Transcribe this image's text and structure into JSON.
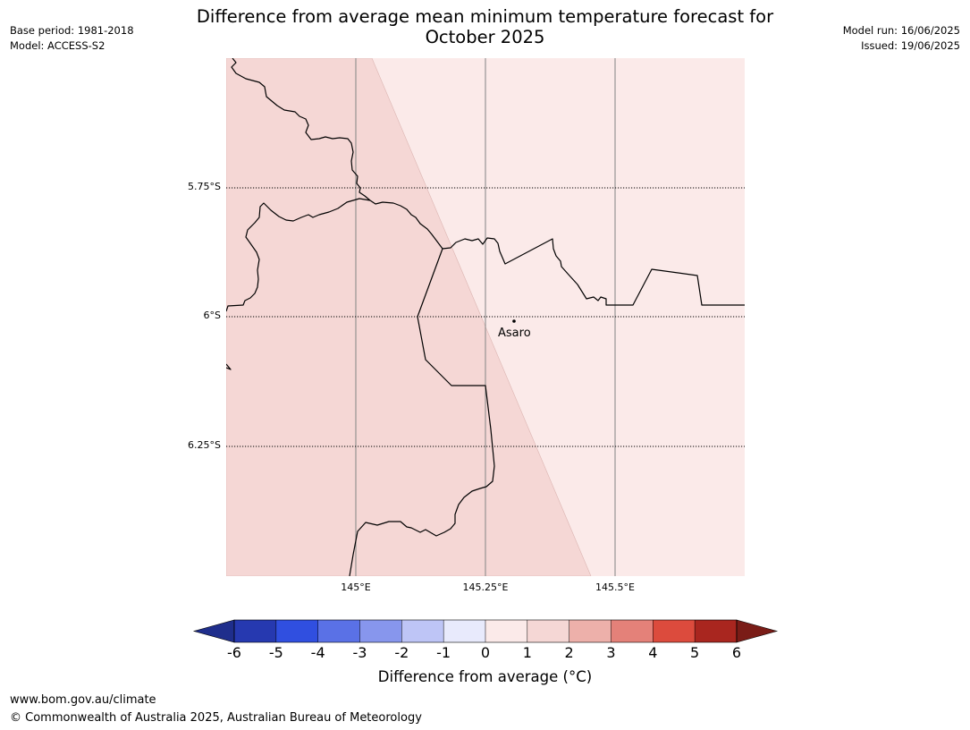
{
  "header": {
    "title_line1": "Difference from average mean minimum temperature forecast for",
    "title_line2": "October 2025",
    "base_period": "Base period: 1981-2018",
    "model": "Model: ACCESS-S2",
    "model_run": "Model run: 16/06/2025",
    "issued": "Issued: 19/06/2025"
  },
  "map": {
    "lat_labels": [
      "5.75°S",
      "6°S",
      "6.25°S"
    ],
    "lon_labels": [
      "145°E",
      "145.25°E",
      "145.5°E"
    ],
    "place": {
      "name": "Asaro"
    },
    "fill_colors": {
      "band_1_to_2": "#f5d7d5",
      "band_0_to_1": "#fbeae9"
    }
  },
  "colorbar": {
    "ticks": [
      "-6",
      "-5",
      "-4",
      "-3",
      "-2",
      "-1",
      "0",
      "1",
      "2",
      "3",
      "4",
      "5",
      "6"
    ],
    "colors": [
      "#1f2e8c",
      "#2639b0",
      "#304fe0",
      "#5a71e6",
      "#8796ed",
      "#bec5f6",
      "#e8eafc",
      "#fbeae9",
      "#f5d7d5",
      "#edb0aa",
      "#e48179",
      "#dc4b3d",
      "#a9261f",
      "#7a1c17"
    ],
    "label": "Difference from average (°C)"
  },
  "footer": {
    "url": "www.bom.gov.au/climate",
    "copyright": "© Commonwealth of Australia 2025, Australian Bureau of Meteorology"
  }
}
